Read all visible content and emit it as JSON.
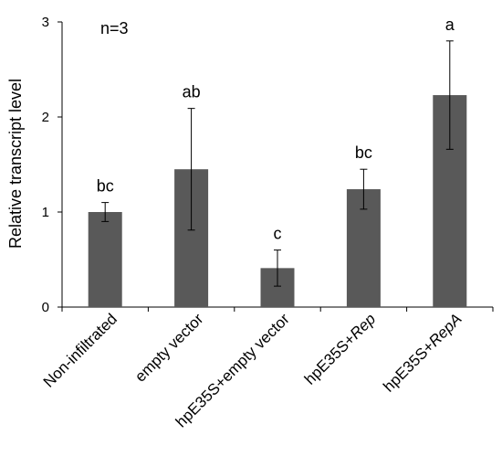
{
  "chart_data": {
    "type": "bar",
    "title": "",
    "xlabel": "",
    "ylabel": "Relative transcript level",
    "ylim": [
      0,
      3
    ],
    "yticks": [
      "0",
      "1",
      "2",
      "3"
    ],
    "grid": false,
    "annotation": "n=3",
    "categories": [
      {
        "pre": "Non-infiltrated",
        "italic": ""
      },
      {
        "pre": "empty vector",
        "italic": ""
      },
      {
        "pre": "hpE35S+empty vector",
        "italic": ""
      },
      {
        "pre": "hpE35S+",
        "italic": "Rep"
      },
      {
        "pre": "hpE35S+",
        "italic": "RepA"
      }
    ],
    "values": [
      1.0,
      1.45,
      0.41,
      1.24,
      2.23
    ],
    "errors": [
      0.1,
      0.64,
      0.19,
      0.21,
      0.57
    ],
    "significance": [
      "bc",
      "ab",
      "c",
      "bc",
      "a"
    ],
    "bar_color": "#595959"
  }
}
